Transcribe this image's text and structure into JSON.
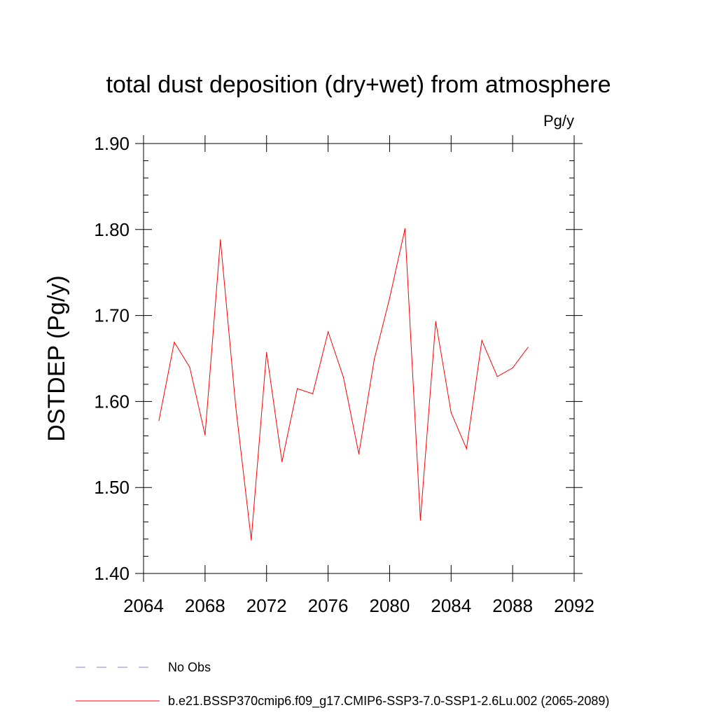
{
  "chart_data": {
    "type": "line",
    "title": "total dust deposition (dry+wet) from atmosphere",
    "units_label": "Pg/y",
    "ylabel": "DSTDEP  (Pg/y)",
    "xlabel": "",
    "xlim": [
      2064,
      2092
    ],
    "ylim": [
      1.4,
      1.9
    ],
    "x_ticks": [
      2064,
      2068,
      2072,
      2076,
      2080,
      2084,
      2088,
      2092
    ],
    "x_tick_labels": [
      "2064",
      "2068",
      "2072",
      "2076",
      "2080",
      "2084",
      "2088",
      "2092"
    ],
    "y_ticks": [
      1.4,
      1.5,
      1.6,
      1.7,
      1.8,
      1.9
    ],
    "y_tick_labels": [
      "1.40",
      "1.50",
      "1.60",
      "1.70",
      "1.80",
      "1.90"
    ],
    "grid": false,
    "series": [
      {
        "name": "b.e21.BSSP370cmip6.f09_g17.CMIP6-SSP3-7.0-SSP1-2.6Lu.002 (2065-2089)",
        "color": "#ff0000",
        "x": [
          2065,
          2066,
          2067,
          2068,
          2069,
          2070,
          2071,
          2072,
          2073,
          2074,
          2075,
          2076,
          2077,
          2078,
          2079,
          2080,
          2081,
          2082,
          2083,
          2084,
          2085,
          2086,
          2087,
          2088,
          2089
        ],
        "values": [
          1.578,
          1.669,
          1.64,
          1.561,
          1.788,
          1.593,
          1.439,
          1.657,
          1.53,
          1.615,
          1.609,
          1.681,
          1.628,
          1.539,
          1.649,
          1.72,
          1.801,
          1.462,
          1.693,
          1.587,
          1.545,
          1.671,
          1.629,
          1.639,
          1.663
        ]
      }
    ],
    "legend": [
      {
        "label": "No Obs",
        "color": "#8a7fc8",
        "style": "dashed"
      },
      {
        "label": "b.e21.BSSP370cmip6.f09_g17.CMIP6-SSP3-7.0-SSP1-2.6Lu.002 (2065-2089)",
        "color": "#ff0000",
        "style": "solid"
      }
    ],
    "legend_placement": "bottom"
  }
}
